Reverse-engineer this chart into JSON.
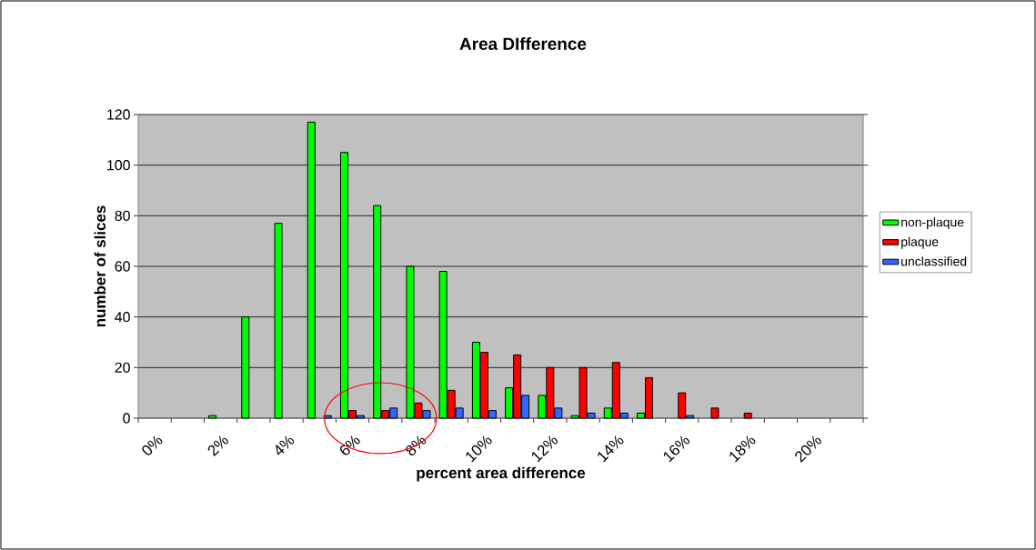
{
  "chart_data": {
    "type": "bar",
    "title": "Area DIfference",
    "xlabel": "percent area difference",
    "ylabel": "number of slices",
    "categories": [
      "0%",
      null,
      "2%",
      null,
      "4%",
      null,
      "6%",
      null,
      "8%",
      null,
      "10%",
      null,
      "12%",
      null,
      "14%",
      null,
      "16%",
      null,
      "18%",
      null,
      "20%",
      null
    ],
    "series": [
      {
        "name": "non-plaque",
        "color": "#00ff00",
        "values": [
          null,
          null,
          1,
          40,
          77,
          117,
          105,
          84,
          60,
          58,
          30,
          12,
          9,
          1,
          4,
          2,
          null,
          null,
          null,
          null,
          null,
          null
        ]
      },
      {
        "name": "plaque",
        "color": "#ff0000",
        "values": [
          null,
          null,
          null,
          null,
          null,
          null,
          3,
          3,
          6,
          11,
          26,
          25,
          20,
          20,
          22,
          16,
          10,
          4,
          2,
          null,
          null,
          null
        ]
      },
      {
        "name": "unclassified",
        "color": "#3366ff",
        "values": [
          null,
          null,
          null,
          null,
          null,
          1,
          1,
          4,
          3,
          4,
          3,
          9,
          4,
          2,
          2,
          null,
          1,
          null,
          null,
          null,
          null,
          null
        ]
      }
    ],
    "ylim": [
      0,
      120
    ],
    "yticks": [
      0,
      20,
      40,
      60,
      80,
      100,
      120
    ],
    "grid": "y",
    "legend": "right"
  }
}
